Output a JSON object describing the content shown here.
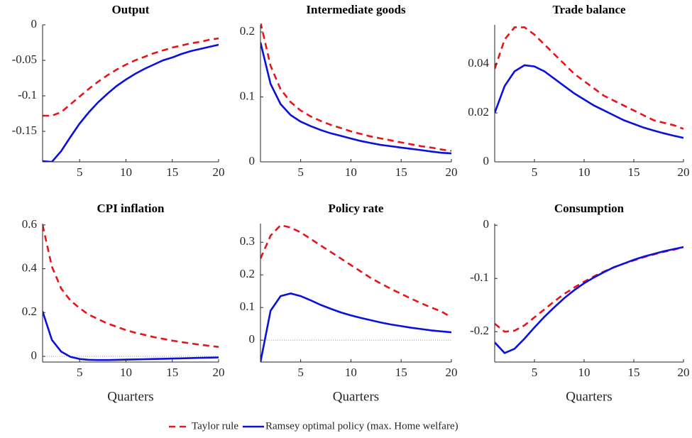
{
  "chart_data": [
    {
      "type": "line",
      "title": "Output",
      "x": [
        1,
        2,
        3,
        4,
        5,
        6,
        7,
        8,
        9,
        10,
        11,
        12,
        13,
        14,
        15,
        16,
        17,
        18,
        19,
        20
      ],
      "xlim": [
        1,
        20
      ],
      "xticks": [
        5,
        10,
        15,
        20
      ],
      "ylim": [
        -0.193,
        0
      ],
      "yticks": [
        -0.15,
        -0.1,
        -0.05,
        0
      ],
      "series": [
        {
          "name": "Taylor rule",
          "color": "#e8141a",
          "dash": true,
          "values": [
            -0.128,
            -0.128,
            -0.123,
            -0.112,
            -0.101,
            -0.09,
            -0.08,
            -0.071,
            -0.063,
            -0.056,
            -0.05,
            -0.045,
            -0.04,
            -0.036,
            -0.032,
            -0.029,
            -0.026,
            -0.024,
            -0.021,
            -0.019
          ]
        },
        {
          "name": "Ramsey optimal policy (max. Home welfare)",
          "color": "#0a10e0",
          "dash": false,
          "values": [
            -0.192,
            -0.193,
            -0.178,
            -0.158,
            -0.139,
            -0.123,
            -0.109,
            -0.097,
            -0.086,
            -0.077,
            -0.069,
            -0.062,
            -0.056,
            -0.05,
            -0.046,
            -0.041,
            -0.037,
            -0.034,
            -0.031,
            -0.028
          ]
        }
      ]
    },
    {
      "type": "line",
      "title": "Intermediate goods",
      "x": [
        1,
        2,
        3,
        4,
        5,
        6,
        7,
        8,
        9,
        10,
        11,
        12,
        13,
        14,
        15,
        16,
        17,
        18,
        19,
        20
      ],
      "xlim": [
        1,
        20
      ],
      "xticks": [
        5,
        10,
        15,
        20
      ],
      "ylim": [
        0,
        0.211
      ],
      "yticks": [
        0,
        0.1,
        0.2
      ],
      "series": [
        {
          "color": "#e8141a",
          "dash": true,
          "values": [
            0.215,
            0.148,
            0.112,
            0.092,
            0.079,
            0.07,
            0.063,
            0.057,
            0.052,
            0.047,
            0.043,
            0.039,
            0.036,
            0.033,
            0.03,
            0.027,
            0.024,
            0.022,
            0.019,
            0.017
          ]
        },
        {
          "color": "#0a10e0",
          "dash": false,
          "values": [
            0.184,
            0.12,
            0.089,
            0.072,
            0.062,
            0.055,
            0.049,
            0.044,
            0.04,
            0.036,
            0.032,
            0.029,
            0.026,
            0.024,
            0.022,
            0.02,
            0.018,
            0.016,
            0.014,
            0.013
          ]
        }
      ]
    },
    {
      "type": "line",
      "title": "Trade balance",
      "x": [
        1,
        2,
        3,
        4,
        5,
        6,
        7,
        8,
        9,
        10,
        11,
        12,
        13,
        14,
        15,
        16,
        17,
        18,
        19,
        20
      ],
      "xlim": [
        1,
        20
      ],
      "xticks": [
        5,
        10,
        15,
        20
      ],
      "ylim": [
        0,
        0.056
      ],
      "yticks": [
        0,
        0.02,
        0.04
      ],
      "series": [
        {
          "color": "#e8141a",
          "dash": true,
          "values": [
            0.038,
            0.05,
            0.055,
            0.055,
            0.052,
            0.048,
            0.044,
            0.04,
            0.036,
            0.033,
            0.03,
            0.027,
            0.025,
            0.023,
            0.021,
            0.019,
            0.017,
            0.016,
            0.015,
            0.0135
          ]
        },
        {
          "color": "#0a10e0",
          "dash": false,
          "values": [
            0.02,
            0.031,
            0.037,
            0.0395,
            0.039,
            0.037,
            0.034,
            0.031,
            0.028,
            0.0255,
            0.023,
            0.021,
            0.019,
            0.017,
            0.0155,
            0.014,
            0.0128,
            0.0117,
            0.0107,
            0.0098
          ]
        }
      ]
    },
    {
      "type": "line",
      "title": "CPI inflation",
      "xlabel": "Quarters",
      "x": [
        1,
        2,
        3,
        4,
        5,
        6,
        7,
        8,
        9,
        10,
        11,
        12,
        13,
        14,
        15,
        16,
        17,
        18,
        19,
        20
      ],
      "xlim": [
        1,
        20
      ],
      "xticks": [
        5,
        10,
        15,
        20
      ],
      "ylim": [
        -0.026,
        0.606
      ],
      "yticks": [
        0,
        0.2,
        0.4,
        0.6
      ],
      "zero_line": true,
      "series": [
        {
          "color": "#e8141a",
          "dash": true,
          "values": [
            0.6,
            0.41,
            0.31,
            0.255,
            0.22,
            0.19,
            0.17,
            0.15,
            0.135,
            0.12,
            0.108,
            0.098,
            0.088,
            0.08,
            0.072,
            0.065,
            0.059,
            0.053,
            0.048,
            0.043
          ]
        },
        {
          "color": "#0a10e0",
          "dash": false,
          "values": [
            0.205,
            0.075,
            0.022,
            -0.002,
            -0.012,
            -0.016,
            -0.017,
            -0.017,
            -0.016,
            -0.015,
            -0.014,
            -0.013,
            -0.012,
            -0.011,
            -0.01,
            -0.009,
            -0.008,
            -0.007,
            -0.006,
            -0.005
          ]
        }
      ]
    },
    {
      "type": "line",
      "title": "Policy rate",
      "xlabel": "Quarters",
      "x": [
        1,
        2,
        3,
        4,
        5,
        6,
        7,
        8,
        9,
        10,
        11,
        12,
        13,
        14,
        15,
        16,
        17,
        18,
        19,
        20
      ],
      "xlim": [
        1,
        20
      ],
      "xticks": [
        5,
        10,
        15,
        20
      ],
      "ylim": [
        -0.067,
        0.357
      ],
      "yticks": [
        0,
        0.1,
        0.2,
        0.3
      ],
      "zero_line": true,
      "series": [
        {
          "color": "#e8141a",
          "dash": true,
          "values": [
            0.25,
            0.32,
            0.352,
            0.345,
            0.33,
            0.31,
            0.29,
            0.27,
            0.25,
            0.23,
            0.21,
            0.19,
            0.173,
            0.157,
            0.142,
            0.127,
            0.113,
            0.1,
            0.088,
            0.07
          ]
        },
        {
          "color": "#0a10e0",
          "dash": false,
          "values": [
            -0.067,
            0.09,
            0.135,
            0.143,
            0.135,
            0.122,
            0.108,
            0.096,
            0.085,
            0.076,
            0.068,
            0.061,
            0.054,
            0.048,
            0.043,
            0.038,
            0.034,
            0.03,
            0.027,
            0.024
          ]
        }
      ]
    },
    {
      "type": "line",
      "title": "Consumption",
      "xlabel": "Quarters",
      "x": [
        1,
        2,
        3,
        4,
        5,
        6,
        7,
        8,
        9,
        10,
        11,
        12,
        13,
        14,
        15,
        16,
        17,
        18,
        19,
        20
      ],
      "xlim": [
        1,
        20
      ],
      "xticks": [
        5,
        10,
        15,
        20
      ],
      "ylim": [
        -0.257,
        0.003
      ],
      "yticks": [
        -0.2,
        -0.1,
        0
      ],
      "series": [
        {
          "color": "#e8141a",
          "dash": true,
          "values": [
            -0.185,
            -0.2,
            -0.198,
            -0.188,
            -0.173,
            -0.158,
            -0.143,
            -0.129,
            -0.117,
            -0.106,
            -0.096,
            -0.087,
            -0.079,
            -0.072,
            -0.066,
            -0.06,
            -0.055,
            -0.05,
            -0.046,
            -0.041
          ]
        },
        {
          "color": "#0a10e0",
          "dash": false,
          "values": [
            -0.22,
            -0.24,
            -0.232,
            -0.213,
            -0.192,
            -0.172,
            -0.154,
            -0.137,
            -0.122,
            -0.109,
            -0.098,
            -0.088,
            -0.079,
            -0.072,
            -0.065,
            -0.059,
            -0.054,
            -0.049,
            -0.045,
            -0.041
          ]
        }
      ]
    }
  ]
}
